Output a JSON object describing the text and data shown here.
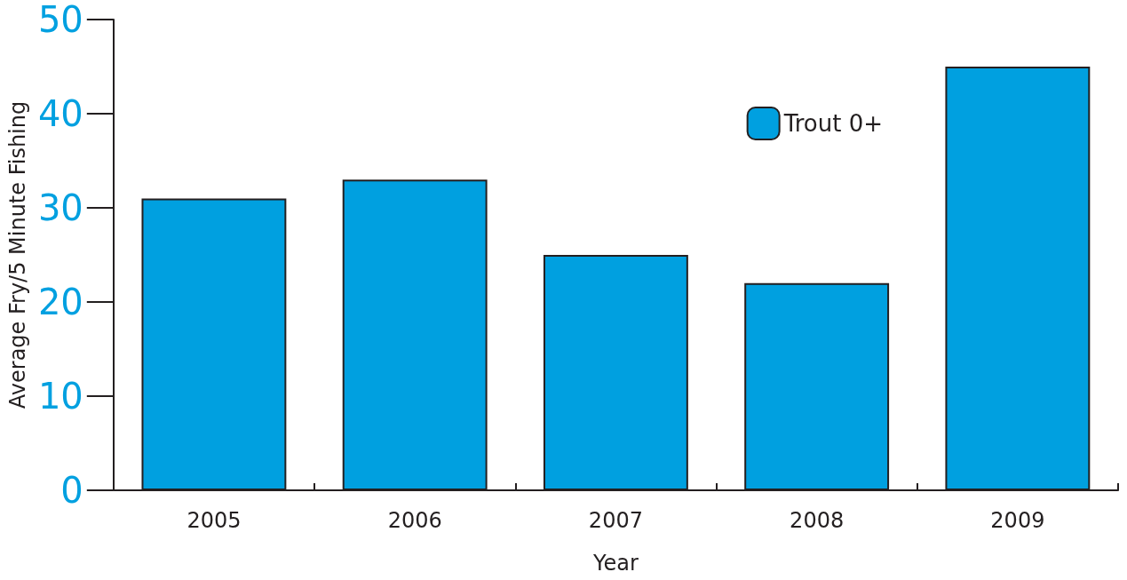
{
  "chart_data": {
    "type": "bar",
    "xlabel": "Year",
    "ylabel": "Average Fry/5 Minute Fishing",
    "categories": [
      "2005",
      "2006",
      "2007",
      "2008",
      "2009"
    ],
    "series": [
      {
        "name": "Trout 0+",
        "color": "#00a0e0",
        "values": [
          31,
          33,
          25,
          22,
          45
        ]
      }
    ],
    "ylim": [
      0,
      50
    ],
    "yticks": [
      0,
      10,
      20,
      30,
      40,
      50
    ],
    "grid": false,
    "legend": "top right"
  }
}
